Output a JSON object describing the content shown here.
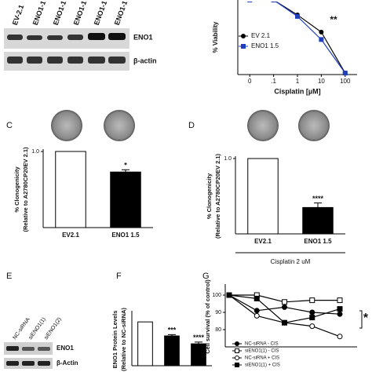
{
  "panel_labels": [
    "C",
    "D",
    "E",
    "F",
    "G"
  ],
  "blot_a": {
    "lanes": [
      "EV-2.1",
      "ENO1-1",
      "ENO1-1",
      "ENO1-1",
      "ENO1-1",
      "ENO1-1"
    ],
    "bands": [
      "ENO1",
      "β-actin"
    ]
  },
  "blot_e": {
    "lanes": [
      "NC-siRNA",
      "siENO1(1)",
      "siENO1(2)"
    ],
    "bands": [
      "ENO1",
      "β-Actin"
    ]
  },
  "chart_data": [
    {
      "type": "line",
      "xlabel": "Cisplatin [µM]",
      "ylabel": [
        "% Viability"
      ],
      "categories": [
        "0",
        ".1",
        "1",
        "10",
        "100"
      ],
      "ylim": [
        0,
        100
      ],
      "annotation": "**",
      "series": [
        {
          "name": "EV 2.1",
          "color": "#000000",
          "marker": "circle",
          "filled": true,
          "values": [
            100,
            100,
            80,
            57,
            2
          ]
        },
        {
          "name": "ENO1 1.5",
          "color": "#1f3fbf",
          "marker": "square",
          "filled": true,
          "values": [
            100,
            100,
            78,
            47,
            2
          ]
        }
      ]
    },
    {
      "type": "bar",
      "ylabel": [
        "% Clonogenicity",
        "(Relative to A2780CP20EV 2.1)"
      ],
      "categories": [
        "EV2.1",
        "ENO1 1.5"
      ],
      "values": [
        1.0,
        0.73
      ],
      "errors": [
        0,
        0.03
      ],
      "significance": [
        null,
        "*"
      ],
      "colors": [
        "#ffffff",
        "#000000"
      ],
      "ylim": [
        0,
        1.0
      ],
      "yticks": [
        {
          "value": 1.0,
          "label": "1.0"
        }
      ]
    },
    {
      "type": "bar",
      "ylabel": [
        "% Clonogenicity",
        "(Relative to A2780CP20EV 2.1)"
      ],
      "categories": [
        "EV2.1",
        "ENO1 1.5"
      ],
      "values": [
        1.0,
        0.35
      ],
      "errors": [
        0,
        0.06
      ],
      "significance": [
        null,
        "****"
      ],
      "colors": [
        "#ffffff",
        "#000000"
      ],
      "ylim": [
        0,
        1.0
      ],
      "yticks": [
        {
          "value": 1.0,
          "label": "1.0"
        }
      ],
      "note": "Cisplatin 2 uM"
    },
    {
      "type": "bar",
      "ylabel": [
        "ENO1 Protein Levels",
        "(Relative to NC-siRNA)"
      ],
      "categories": [
        null,
        null,
        null
      ],
      "values": [
        1.0,
        0.68,
        0.5
      ],
      "errors": [
        0,
        0.03,
        0.04
      ],
      "significance": [
        null,
        "***",
        "****"
      ],
      "colors": [
        "#ffffff",
        "#000000",
        "#000000"
      ],
      "ylim": [
        0,
        1.2
      ]
    },
    {
      "type": "line",
      "ylabel": [
        "Cell survival (% of control)"
      ],
      "categories": [
        null,
        null,
        null,
        null,
        null
      ],
      "ylim": [
        70,
        105
      ],
      "yticks": [
        80,
        90,
        100
      ],
      "annotation": "*",
      "series": [
        {
          "name": "NC-siRNA - CIS",
          "color": "#000000",
          "marker": "circle",
          "filled": true,
          "values": [
            100,
            91,
            93,
            90,
            89
          ]
        },
        {
          "name": "siENO1(1) - CIS",
          "color": "#000000",
          "marker": "square",
          "filled": false,
          "values": [
            100,
            100,
            96,
            97,
            97
          ]
        },
        {
          "name": "NC-siRNA + CIS",
          "color": "#000000",
          "marker": "circle",
          "filled": false,
          "values": [
            100,
            88,
            84,
            82,
            76
          ]
        },
        {
          "name": "siENO1(1) + CIS",
          "color": "#000000",
          "marker": "square",
          "filled": true,
          "values": [
            100,
            98,
            84,
            87,
            92
          ]
        }
      ]
    }
  ]
}
